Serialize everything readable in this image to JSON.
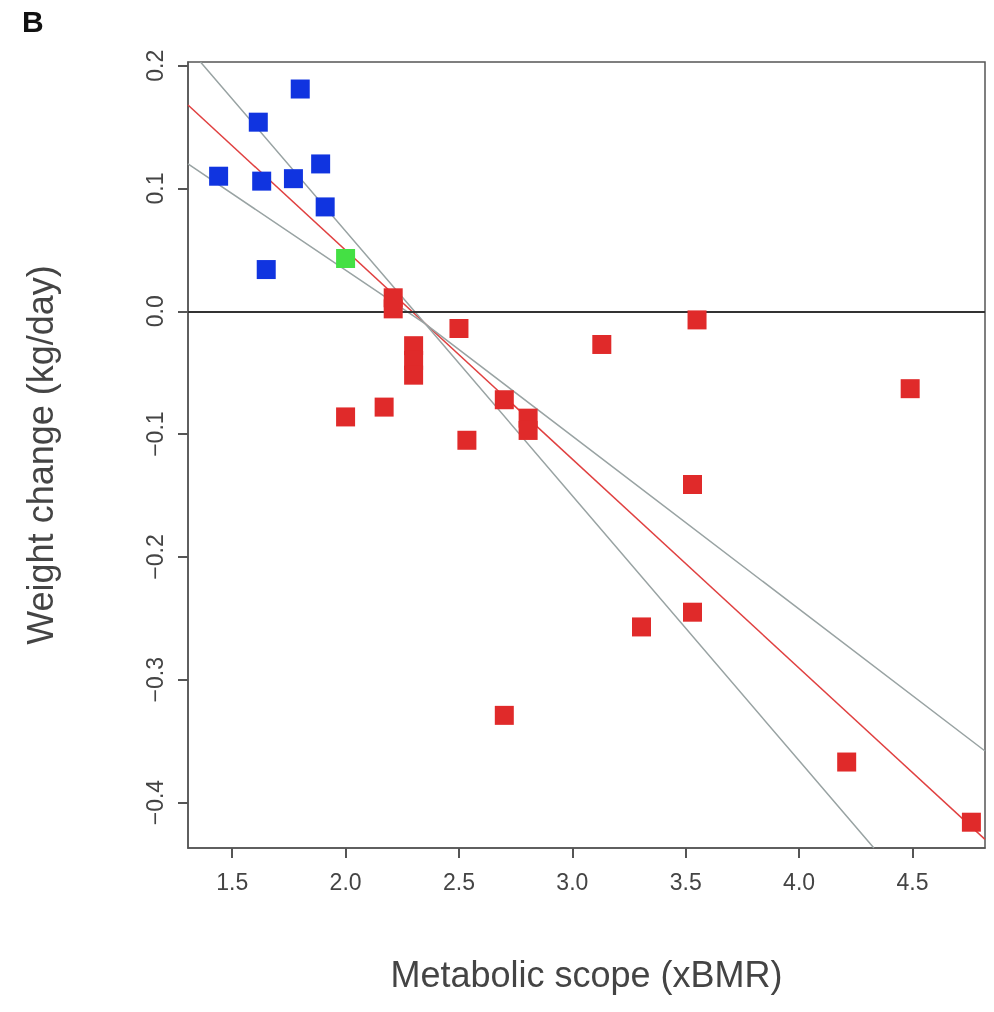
{
  "chart_data": {
    "type": "scatter",
    "xlabel": "Metabolic scope (xBMR)",
    "ylabel": "Weight change (kg/day)",
    "annotations": [
      "B"
    ],
    "xlim": [
      1.305,
      4.82
    ],
    "ylim": [
      -0.437,
      0.203
    ],
    "xticks": [
      1.5,
      {
        "value": 2,
        "label": "2.0"
      },
      2.5,
      {
        "value": 3,
        "label": "3.0"
      },
      3.5,
      {
        "value": 4,
        "label": "4.0"
      },
      4.5
    ],
    "yticks": [
      {
        "value": -0.4,
        "label": "−0.4"
      },
      {
        "value": -0.3,
        "label": "−0.3"
      },
      {
        "value": -0.2,
        "label": "−0.2"
      },
      {
        "value": -0.1,
        "label": "−0.1"
      },
      {
        "value": 0,
        "label": "0.0"
      },
      0.1,
      0.2
    ],
    "grid": false,
    "marker": "square",
    "ref_lines": [
      {
        "axis": "y",
        "value": 0,
        "color": "#333333",
        "line_style": "solid"
      }
    ],
    "series": [
      {
        "color": "#1034e0",
        "x": [
          1.44,
          1.615,
          1.63,
          1.77,
          1.8,
          1.89,
          1.91,
          1.65
        ],
        "values": [
          0.11,
          0.154,
          0.106,
          0.108,
          0.181,
          0.12,
          0.085,
          0.034
        ]
      },
      {
        "color": "#44e044",
        "x": [
          2.0
        ],
        "values": [
          0.043
        ]
      },
      {
        "color": "#e02a2a",
        "x": [
          2.21,
          2.21,
          2.3,
          2.3,
          2.3,
          2.5,
          2.0,
          2.17,
          2.535,
          2.7,
          2.805,
          2.805,
          3.13,
          3.55,
          3.53,
          3.53,
          3.305,
          2.7,
          4.21,
          4.49,
          4.76
        ],
        "values": [
          0.011,
          0.002,
          -0.028,
          -0.04,
          -0.052,
          -0.014,
          -0.086,
          -0.078,
          -0.105,
          -0.072,
          -0.087,
          -0.097,
          -0.027,
          -0.007,
          -0.141,
          -0.245,
          -0.257,
          -0.329,
          -0.367,
          -0.063,
          -0.416
        ]
      },
      {
        "type": "line",
        "color": "#e04040",
        "marker": "none",
        "x": [
          1.305,
          4.82
        ],
        "values": [
          0.168,
          -0.43
        ]
      },
      {
        "type": "line",
        "color": "#99a3a3",
        "marker": "none",
        "x": [
          1.36,
          2.35,
          4.33
        ],
        "values": [
          0.203,
          -0.01,
          -0.437
        ]
      },
      {
        "type": "line",
        "color": "#99a3a3",
        "marker": "none",
        "x": [
          1.305,
          2.35,
          4.82
        ],
        "values": [
          0.12,
          -0.01,
          -0.358
        ]
      }
    ]
  }
}
